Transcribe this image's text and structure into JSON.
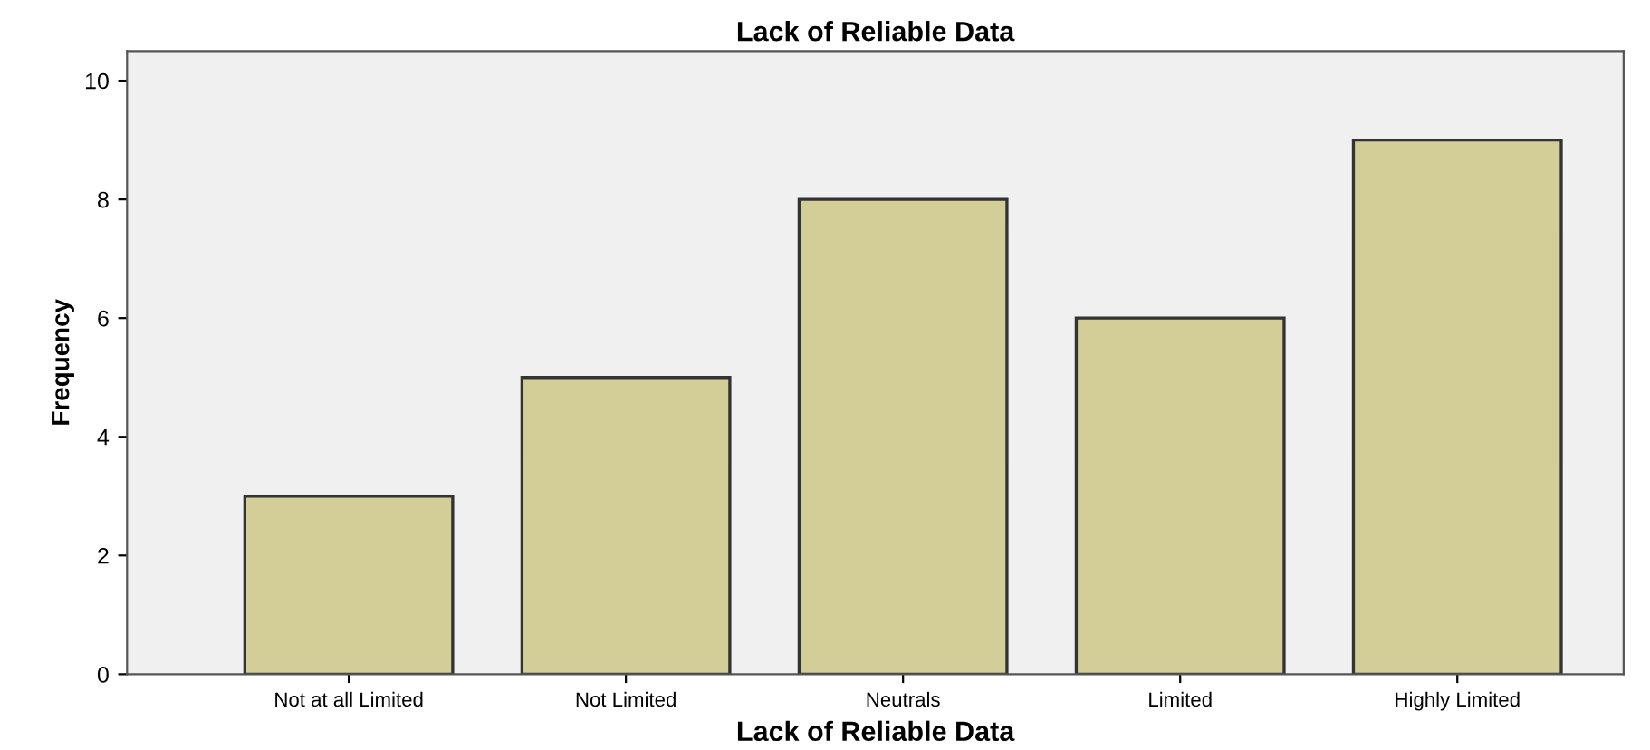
{
  "chart_data": {
    "type": "bar",
    "title": "Lack of Reliable Data",
    "xlabel": "Lack of Reliable Data",
    "ylabel": "Frequency",
    "categories": [
      "Not at all Limited",
      "Not Limited",
      "Neutrals",
      "Limited",
      "Highly Limited"
    ],
    "values": [
      3,
      5,
      8,
      6,
      9
    ],
    "color": "#d3ce97",
    "ylim": [
      0,
      10.5
    ],
    "yticks": [
      0,
      2,
      4,
      6,
      8,
      10
    ],
    "grid": false
  }
}
